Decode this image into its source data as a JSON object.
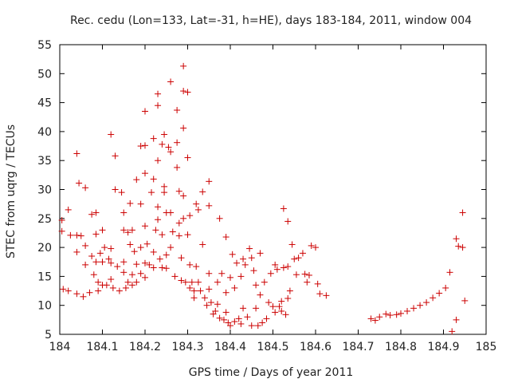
{
  "chart_data": {
    "type": "scatter",
    "title": "Rec. cedu (Lon=133, Lat=-31, h=HE), days 183-184, 2011, window 004",
    "xlabel": "GPS time / Days of year 2011",
    "ylabel": "STEC from uqrg / TECUs",
    "xlim": [
      184,
      185
    ],
    "ylim": [
      5,
      55
    ],
    "xticks": [
      "184",
      "184.1",
      "184.2",
      "184.3",
      "184.4",
      "184.5",
      "184.6",
      "184.7",
      "184.8",
      "184.9",
      "185"
    ],
    "yticks": [
      "5",
      "10",
      "15",
      "20",
      "25",
      "30",
      "35",
      "40",
      "45",
      "50",
      "55"
    ],
    "grid": false,
    "marker": "+",
    "color": "#cc0000",
    "points": [
      [
        184.005,
        24.7
      ],
      [
        184.005,
        22.8
      ],
      [
        184.008,
        12.8
      ],
      [
        184.02,
        26.5
      ],
      [
        184.02,
        12.5
      ],
      [
        184.025,
        22.1
      ],
      [
        184.04,
        36.2
      ],
      [
        184.04,
        22.1
      ],
      [
        184.04,
        19.2
      ],
      [
        184.04,
        12
      ],
      [
        184.045,
        31.1
      ],
      [
        184.05,
        22
      ],
      [
        184.055,
        11.5
      ],
      [
        184.06,
        30.3
      ],
      [
        184.06,
        20.3
      ],
      [
        184.06,
        17
      ],
      [
        184.07,
        12.2
      ],
      [
        184.075,
        25.7
      ],
      [
        184.075,
        18.5
      ],
      [
        184.08,
        15.3
      ],
      [
        184.085,
        26
      ],
      [
        184.085,
        22.3
      ],
      [
        184.085,
        17.5
      ],
      [
        184.09,
        14
      ],
      [
        184.09,
        12.5
      ],
      [
        184.095,
        19
      ],
      [
        184.1,
        23
      ],
      [
        184.1,
        17.5
      ],
      [
        184.1,
        13.5
      ],
      [
        184.105,
        20
      ],
      [
        184.11,
        13.5
      ],
      [
        184.115,
        18
      ],
      [
        184.12,
        39.5
      ],
      [
        184.12,
        19.8
      ],
      [
        184.12,
        17.3
      ],
      [
        184.12,
        14.5
      ],
      [
        184.125,
        13
      ],
      [
        184.13,
        35.8
      ],
      [
        184.13,
        30
      ],
      [
        184.135,
        16.7
      ],
      [
        184.14,
        12.5
      ],
      [
        184.145,
        29.5
      ],
      [
        184.15,
        26
      ],
      [
        184.15,
        23
      ],
      [
        184.15,
        17.5
      ],
      [
        184.15,
        15.7
      ],
      [
        184.155,
        13
      ],
      [
        184.16,
        22.6
      ],
      [
        184.16,
        14
      ],
      [
        184.165,
        27.6
      ],
      [
        184.165,
        20.5
      ],
      [
        184.17,
        23
      ],
      [
        184.17,
        15.3
      ],
      [
        184.17,
        13.5
      ],
      [
        184.175,
        19.3
      ],
      [
        184.18,
        31.7
      ],
      [
        184.18,
        17.1
      ],
      [
        184.18,
        14
      ],
      [
        184.19,
        37.5
      ],
      [
        184.19,
        27.5
      ],
      [
        184.19,
        20
      ],
      [
        184.19,
        15.5
      ],
      [
        184.2,
        43.5
      ],
      [
        184.2,
        37.6
      ],
      [
        184.2,
        32.8
      ],
      [
        184.2,
        23.7
      ],
      [
        184.2,
        17.3
      ],
      [
        184.2,
        14.8
      ],
      [
        184.205,
        20.6
      ],
      [
        184.21,
        17
      ],
      [
        184.215,
        29.5
      ],
      [
        184.22,
        38.8
      ],
      [
        184.22,
        31.8
      ],
      [
        184.22,
        19.2
      ],
      [
        184.22,
        16.5
      ],
      [
        184.225,
        23
      ],
      [
        184.23,
        46.5
      ],
      [
        184.23,
        44.5
      ],
      [
        184.23,
        35
      ],
      [
        184.23,
        27
      ],
      [
        184.23,
        24.8
      ],
      [
        184.235,
        18
      ],
      [
        184.24,
        37.8
      ],
      [
        184.24,
        22.2
      ],
      [
        184.24,
        16.5
      ],
      [
        184.245,
        39.5
      ],
      [
        184.245,
        30.5
      ],
      [
        184.245,
        29.5
      ],
      [
        184.25,
        26
      ],
      [
        184.25,
        18.7
      ],
      [
        184.25,
        16.4
      ],
      [
        184.255,
        37.3
      ],
      [
        184.26,
        48.6
      ],
      [
        184.26,
        36.5
      ],
      [
        184.26,
        26
      ],
      [
        184.26,
        20
      ],
      [
        184.265,
        22.7
      ],
      [
        184.27,
        15
      ],
      [
        184.275,
        43.7
      ],
      [
        184.275,
        38.1
      ],
      [
        184.275,
        33.8
      ],
      [
        184.28,
        29.7
      ],
      [
        184.28,
        24.2
      ],
      [
        184.28,
        22
      ],
      [
        184.285,
        18.2
      ],
      [
        184.285,
        14.3
      ],
      [
        184.29,
        51.3
      ],
      [
        184.29,
        47
      ],
      [
        184.29,
        40.6
      ],
      [
        184.29,
        28.9
      ],
      [
        184.29,
        25
      ],
      [
        184.295,
        14
      ],
      [
        184.3,
        46.8
      ],
      [
        184.3,
        35.5
      ],
      [
        184.3,
        22.2
      ],
      [
        184.305,
        25.5
      ],
      [
        184.305,
        17
      ],
      [
        184.305,
        13
      ],
      [
        184.31,
        14
      ],
      [
        184.315,
        12.5
      ],
      [
        184.315,
        11.3
      ],
      [
        184.32,
        27.5
      ],
      [
        184.32,
        16.7
      ],
      [
        184.325,
        26.5
      ],
      [
        184.325,
        14
      ],
      [
        184.33,
        12.5
      ],
      [
        184.335,
        29.6
      ],
      [
        184.335,
        20.5
      ],
      [
        184.34,
        11.3
      ],
      [
        184.345,
        10
      ],
      [
        184.35,
        31.4
      ],
      [
        184.35,
        27.2
      ],
      [
        184.35,
        15.5
      ],
      [
        184.35,
        12.8
      ],
      [
        184.355,
        10.5
      ],
      [
        184.36,
        8.5
      ],
      [
        184.365,
        9
      ],
      [
        184.37,
        14
      ],
      [
        184.37,
        10.2
      ],
      [
        184.375,
        25
      ],
      [
        184.375,
        7.8
      ],
      [
        184.38,
        15.5
      ],
      [
        184.385,
        7.5
      ],
      [
        184.39,
        21.8
      ],
      [
        184.39,
        12.2
      ],
      [
        184.39,
        8.8
      ],
      [
        184.395,
        7
      ],
      [
        184.4,
        14.8
      ],
      [
        184.4,
        6.5
      ],
      [
        184.405,
        18.8
      ],
      [
        184.41,
        13
      ],
      [
        184.41,
        7.2
      ],
      [
        184.415,
        17.3
      ],
      [
        184.42,
        7.7
      ],
      [
        184.425,
        15
      ],
      [
        184.425,
        6.8
      ],
      [
        184.43,
        18
      ],
      [
        184.43,
        9.5
      ],
      [
        184.435,
        17
      ],
      [
        184.44,
        8
      ],
      [
        184.445,
        19.8
      ],
      [
        184.45,
        18.2
      ],
      [
        184.45,
        6.5
      ],
      [
        184.455,
        16
      ],
      [
        184.46,
        13.5
      ],
      [
        184.46,
        9.5
      ],
      [
        184.465,
        6.5
      ],
      [
        184.47,
        19
      ],
      [
        184.47,
        11.8
      ],
      [
        184.475,
        7
      ],
      [
        184.48,
        14
      ],
      [
        184.485,
        7.7
      ],
      [
        184.49,
        10.5
      ],
      [
        184.495,
        15.5
      ],
      [
        184.5,
        9.8
      ],
      [
        184.505,
        17
      ],
      [
        184.505,
        8.8
      ],
      [
        184.51,
        16.2
      ],
      [
        184.515,
        9.8
      ],
      [
        184.52,
        10.7
      ],
      [
        184.52,
        9
      ],
      [
        184.525,
        26.7
      ],
      [
        184.525,
        16.5
      ],
      [
        184.53,
        8.4
      ],
      [
        184.535,
        24.5
      ],
      [
        184.535,
        16.7
      ],
      [
        184.535,
        11.2
      ],
      [
        184.54,
        12.5
      ],
      [
        184.545,
        20.5
      ],
      [
        184.55,
        18
      ],
      [
        184.555,
        15.3
      ],
      [
        184.56,
        18.2
      ],
      [
        184.57,
        19
      ],
      [
        184.575,
        15.4
      ],
      [
        184.58,
        14
      ],
      [
        184.585,
        15.2
      ],
      [
        184.59,
        20.3
      ],
      [
        184.6,
        20
      ],
      [
        184.605,
        13.7
      ],
      [
        184.61,
        12
      ],
      [
        184.625,
        11.7
      ],
      [
        184.73,
        7.7
      ],
      [
        184.74,
        7.4
      ],
      [
        184.75,
        8
      ],
      [
        184.765,
        8.5
      ],
      [
        184.775,
        8.3
      ],
      [
        184.79,
        8.4
      ],
      [
        184.8,
        8.6
      ],
      [
        184.815,
        9
      ],
      [
        184.83,
        9.5
      ],
      [
        184.845,
        10
      ],
      [
        184.86,
        10.5
      ],
      [
        184.875,
        11.3
      ],
      [
        184.89,
        12.1
      ],
      [
        184.905,
        13
      ],
      [
        184.915,
        15.7
      ],
      [
        184.92,
        5.5
      ],
      [
        184.93,
        21.5
      ],
      [
        184.93,
        7.5
      ],
      [
        184.935,
        20.2
      ],
      [
        184.945,
        26
      ],
      [
        184.945,
        20
      ],
      [
        184.95,
        10.8
      ]
    ]
  }
}
